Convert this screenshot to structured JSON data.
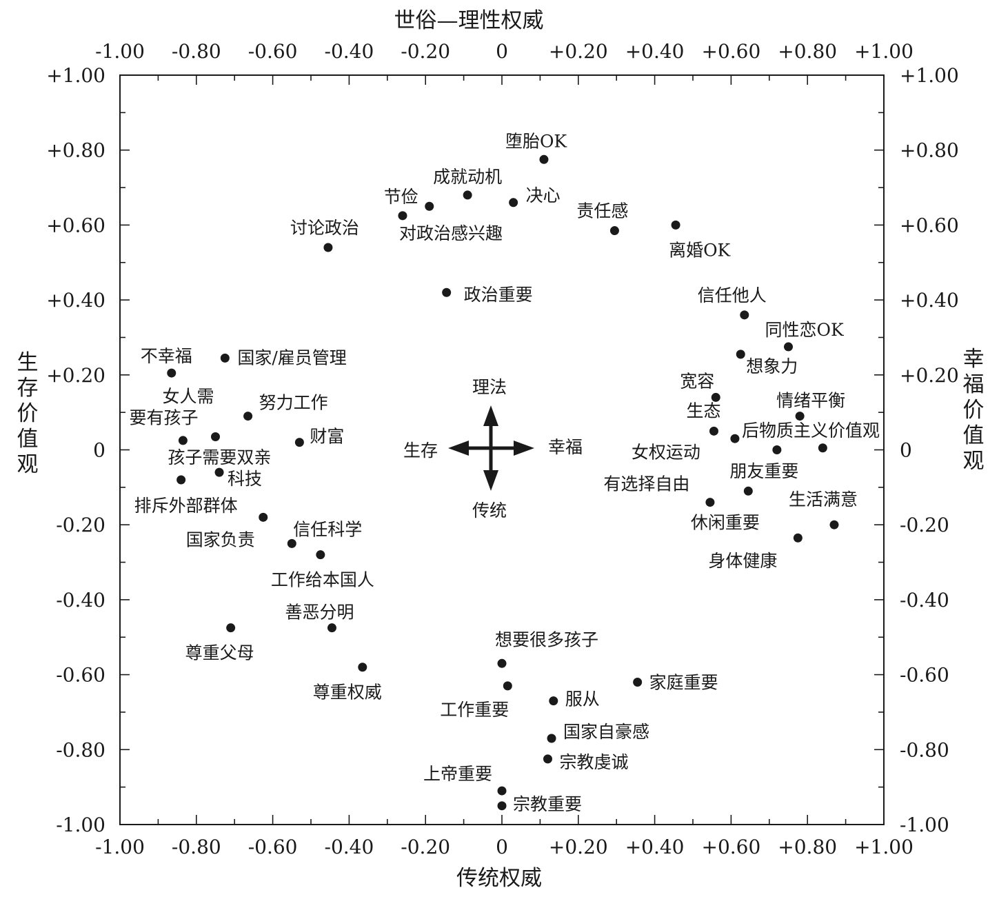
{
  "chart_data": {
    "type": "scatter",
    "xlim": [
      -1.0,
      1.0
    ],
    "ylim": [
      -1.0,
      1.0
    ],
    "grid": false,
    "x_ticks": [
      "-1.00",
      "-0.80",
      "-0.60",
      "-0.40",
      "-0.20",
      "0",
      "+0.20",
      "+0.40",
      "+0.60",
      "+0.80",
      "+1.00"
    ],
    "y_ticks": [
      "+1.00",
      "+0.80",
      "+0.60",
      "+0.40",
      "+0.20",
      "0",
      "-0.20",
      "-0.40",
      "-0.60",
      "-0.80",
      "-1.00"
    ],
    "axes": {
      "top": "世俗—理性权威",
      "bottom": "传统权威",
      "left": "生存价值观",
      "right": "幸福价值观"
    },
    "compass": {
      "up": "理法",
      "down": "传统",
      "left": "生存",
      "right": "幸福"
    },
    "points": [
      {
        "label": "堕胎OK",
        "x": 0.11,
        "y": 0.775
      },
      {
        "label": "成就动机",
        "x": -0.09,
        "y": 0.68
      },
      {
        "label": "决心",
        "x": 0.03,
        "y": 0.66
      },
      {
        "label": "节俭",
        "x": -0.19,
        "y": 0.65
      },
      {
        "label": "对政治感兴趣",
        "x": -0.26,
        "y": 0.625
      },
      {
        "label": "责任感",
        "x": 0.295,
        "y": 0.585
      },
      {
        "label": "离婚OK",
        "x": 0.455,
        "y": 0.6
      },
      {
        "label": "讨论政治",
        "x": -0.455,
        "y": 0.54
      },
      {
        "label": "政治重要",
        "x": -0.145,
        "y": 0.42
      },
      {
        "label": "信任他人",
        "x": 0.635,
        "y": 0.36
      },
      {
        "label": "同性恋OK",
        "x": 0.75,
        "y": 0.275
      },
      {
        "label": "想象力",
        "x": 0.625,
        "y": 0.255
      },
      {
        "label": "宽容",
        "x": 0.56,
        "y": 0.14
      },
      {
        "label": "情绪平衡",
        "x": 0.78,
        "y": 0.09
      },
      {
        "label": "生态",
        "x": 0.555,
        "y": 0.05
      },
      {
        "label": "后物质主义价值观",
        "x": 0.61,
        "y": 0.03
      },
      {
        "label": "女权运动",
        "x": 0.72,
        "y": 0.0
      },
      {
        "label": "朋友重要",
        "x": 0.84,
        "y": 0.005
      },
      {
        "label": "有选择自由",
        "x": 0.645,
        "y": -0.11
      },
      {
        "label": "休闲重要",
        "x": 0.545,
        "y": -0.14
      },
      {
        "label": "生活满意",
        "x": 0.87,
        "y": -0.2
      },
      {
        "label": "身体健康",
        "x": 0.775,
        "y": -0.235
      },
      {
        "label": "不幸福",
        "x": -0.865,
        "y": 0.205
      },
      {
        "label": "国家/雇员管理",
        "x": -0.725,
        "y": 0.245
      },
      {
        "label": "努力工作",
        "x": -0.665,
        "y": 0.09
      },
      {
        "label": "女人需要有孩子",
        "x": -0.75,
        "y": 0.035
      },
      {
        "label": "财富",
        "x": -0.53,
        "y": 0.02
      },
      {
        "label": "孩子需要双亲",
        "x": -0.835,
        "y": 0.025
      },
      {
        "label": "科技",
        "x": -0.74,
        "y": -0.06
      },
      {
        "label": "排斥外部群体",
        "x": -0.84,
        "y": -0.08
      },
      {
        "label": "国家负责",
        "x": -0.625,
        "y": -0.18
      },
      {
        "label": "信任科学",
        "x": -0.55,
        "y": -0.25
      },
      {
        "label": "工作给本国人",
        "x": -0.475,
        "y": -0.28
      },
      {
        "label": "善恶分明",
        "x": -0.445,
        "y": -0.475
      },
      {
        "label": "尊重父母",
        "x": -0.71,
        "y": -0.475
      },
      {
        "label": "尊重权威",
        "x": -0.365,
        "y": -0.58
      },
      {
        "label": "想要很多孩子",
        "x": 0.0,
        "y": -0.57
      },
      {
        "label": "工作重要",
        "x": 0.015,
        "y": -0.63
      },
      {
        "label": "家庭重要",
        "x": 0.355,
        "y": -0.62
      },
      {
        "label": "服从",
        "x": 0.135,
        "y": -0.67
      },
      {
        "label": "国家自豪感",
        "x": 0.13,
        "y": -0.77
      },
      {
        "label": "宗教虔诚",
        "x": 0.12,
        "y": -0.825
      },
      {
        "label": "上帝重要",
        "x": 0.0,
        "y": -0.91
      },
      {
        "label": "宗教重要",
        "x": 0.0,
        "y": -0.95
      }
    ]
  }
}
